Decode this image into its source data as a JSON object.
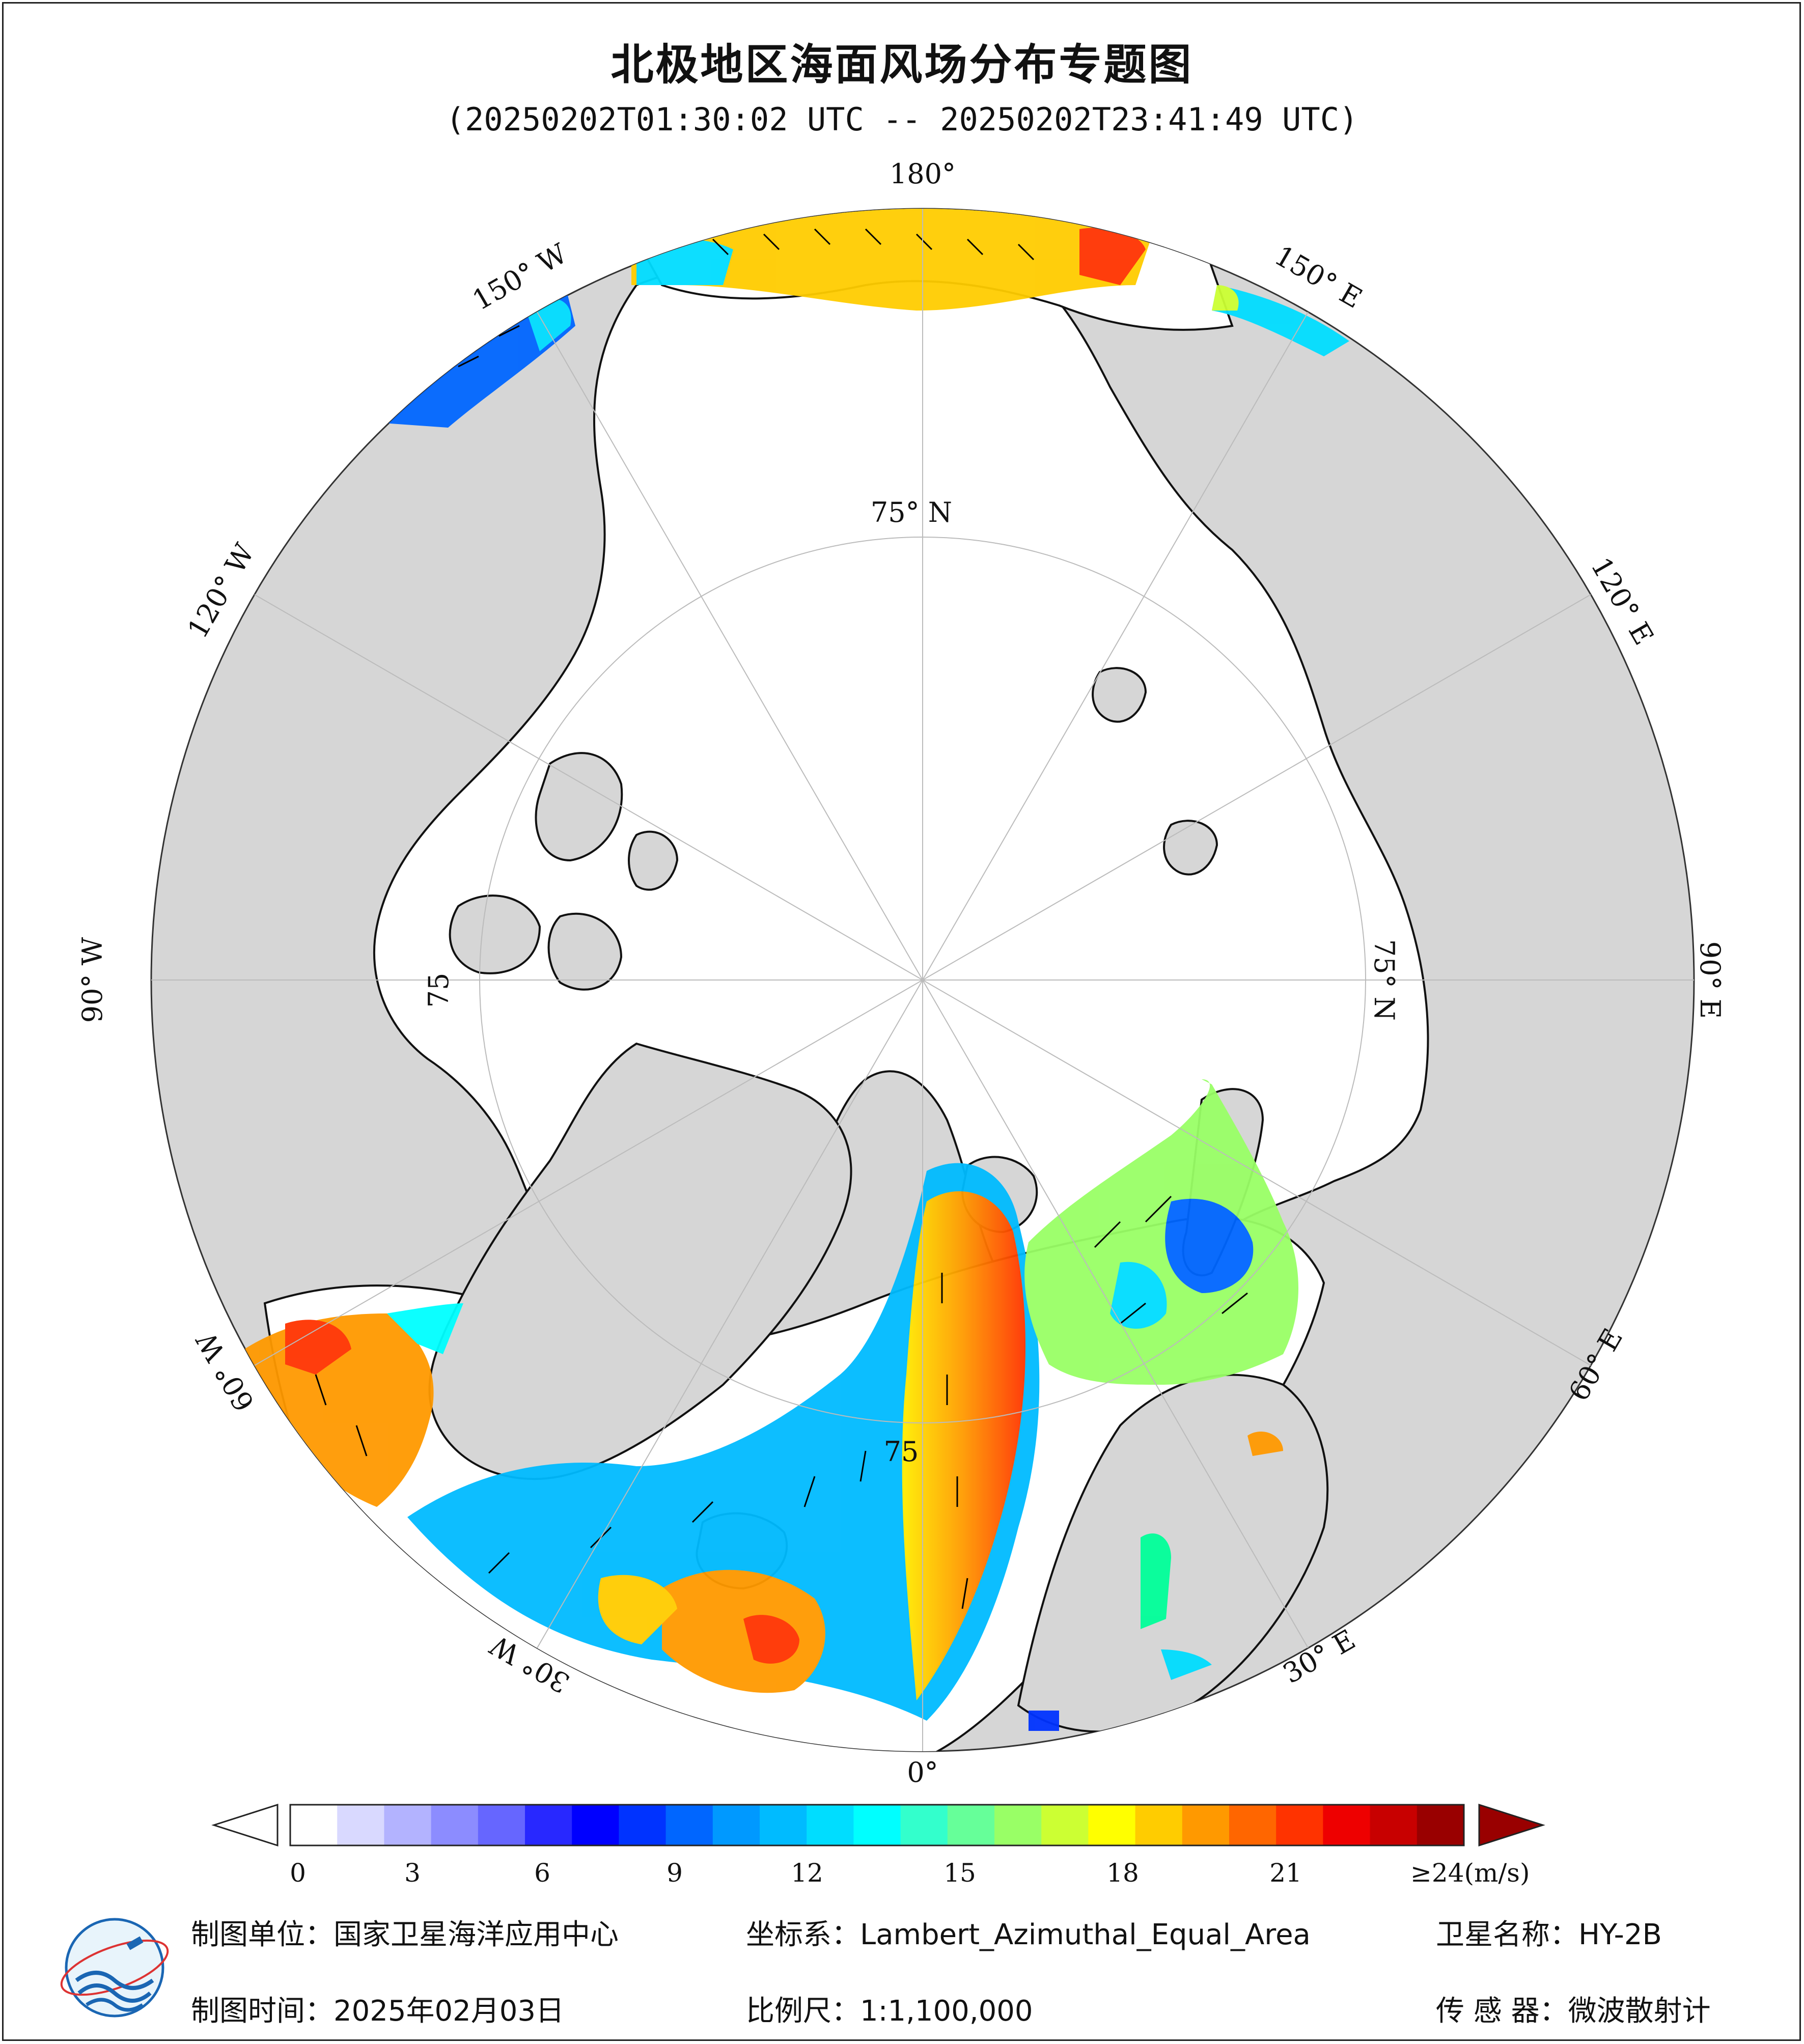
{
  "title": "北极地区海面风场分布专题图",
  "subtitle": "(20250202T01:30:02 UTC -- 20250202T23:41:49 UTC)",
  "map": {
    "longitude_labels": [
      "180°",
      "150° E",
      "120° E",
      "90° E",
      "60° E",
      "30° E",
      "0°",
      "30° W",
      "60° W",
      "90° W",
      "120° W",
      "150° W"
    ],
    "latitude_labels": [
      "75° N",
      "75° N",
      "75",
      "75"
    ]
  },
  "colorbar": {
    "unit": "≥24(m/s)",
    "tick_labels": [
      "0",
      "3",
      "6",
      "9",
      "12",
      "15",
      "18",
      "21"
    ],
    "colors": [
      "#ffffff",
      "#d9d9ff",
      "#b3b3ff",
      "#8c8cff",
      "#6666ff",
      "#2828ff",
      "#0000ff",
      "#0033ff",
      "#0066ff",
      "#0099ff",
      "#00bbff",
      "#00ddff",
      "#00ffff",
      "#33ffcc",
      "#66ff99",
      "#99ff66",
      "#ccff33",
      "#ffff00",
      "#ffcc00",
      "#ff9900",
      "#ff6600",
      "#ff3300",
      "#ee0000",
      "#c80000",
      "#990000"
    ]
  },
  "footer": {
    "unit_key": "制图单位：",
    "unit_value": "国家卫星海洋应用中心",
    "time_key": "制图时间：",
    "time_value": "2025年02月03日",
    "crs_key": "坐标系：",
    "crs_value": "Lambert_Azimuthal_Equal_Area",
    "scale_key": "比例尺：",
    "scale_value": "1:1,100,000",
    "sat_key": "卫星名称：",
    "sat_value": "HY-2B",
    "sensor_key": "传 感 器：",
    "sensor_value": "微波散射计"
  },
  "colors": {
    "land": "#d6d6d6",
    "ocean": "#ffffff",
    "coast": "#111111"
  }
}
